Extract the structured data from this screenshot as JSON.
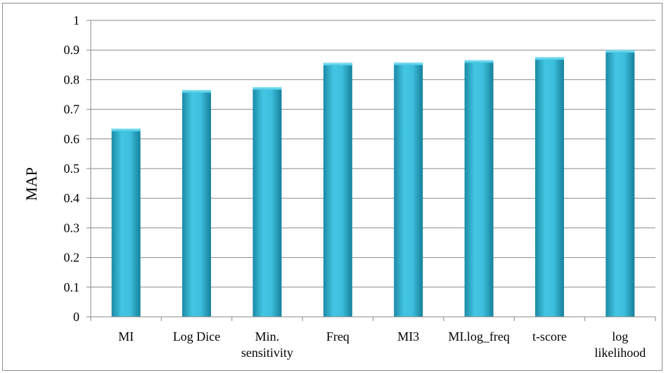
{
  "chart_data": {
    "type": "bar",
    "title": "",
    "xlabel": "",
    "ylabel": "MAP",
    "ylim": [
      0,
      1
    ],
    "yticks": [
      0,
      0.1,
      0.2,
      0.3,
      0.4,
      0.5,
      0.6,
      0.7,
      0.8,
      0.9,
      1
    ],
    "ytick_labels": [
      "0",
      "0.1",
      "0.2",
      "0.3",
      "0.4",
      "0.5",
      "0.6",
      "0.7",
      "0.8",
      "0.9",
      "1"
    ],
    "grid": true,
    "legend": "none",
    "categories": [
      [
        "MI"
      ],
      [
        "Log Dice"
      ],
      [
        "Min.",
        "sensitivity"
      ],
      [
        "Freq"
      ],
      [
        "MI3"
      ],
      [
        "MI.log_freq"
      ],
      [
        "t-score"
      ],
      [
        "log",
        "likelihood"
      ]
    ],
    "values": [
      0.635,
      0.765,
      0.775,
      0.857,
      0.858,
      0.866,
      0.876,
      0.9
    ],
    "bar_color": "#2fb4d2"
  }
}
